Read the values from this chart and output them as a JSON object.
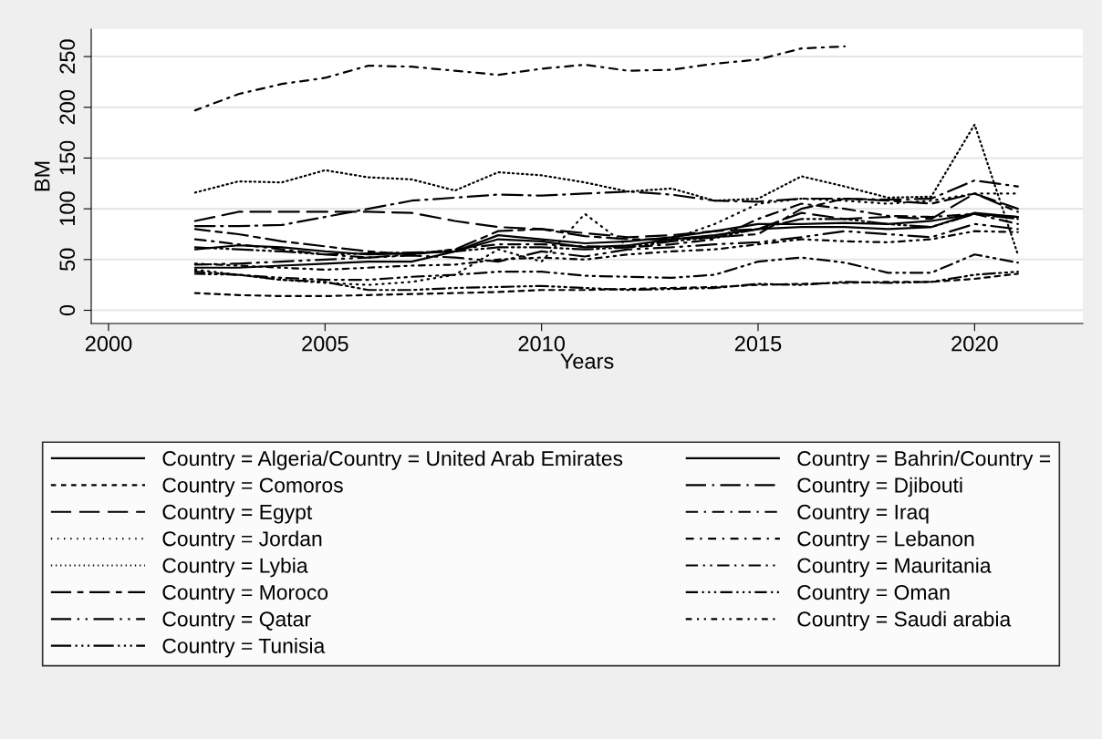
{
  "chart_data": {
    "type": "line",
    "xlabel": "Years",
    "ylabel": "BM",
    "x": [
      2002,
      2003,
      2004,
      2005,
      2006,
      2007,
      2008,
      2009,
      2010,
      2011,
      2012,
      2013,
      2014,
      2015,
      2016,
      2017,
      2018,
      2019,
      2020,
      2021
    ],
    "xlim": [
      1999.6,
      2022.5
    ],
    "xticks": [
      2000,
      2005,
      2010,
      2015,
      2020
    ],
    "ylim": [
      -13,
      277
    ],
    "yticks": [
      0,
      50,
      100,
      150,
      200,
      250
    ],
    "grid": "y",
    "legend": "bottom",
    "series": [
      {
        "name": "Country = Algeria/Country = United Arab Emirates",
        "color": "#000000",
        "line_style": "solid",
        "values": [
          42,
          42,
          44,
          46,
          48,
          48,
          58,
          74,
          70,
          66,
          68,
          72,
          78,
          85,
          85,
          86,
          85,
          88,
          95,
          92
        ]
      },
      {
        "name": "Country = Bahrin/Country =",
        "color": "#000000",
        "line_style": "solid",
        "values": [
          60,
          64,
          62,
          58,
          55,
          56,
          58,
          70,
          68,
          62,
          64,
          70,
          74,
          80,
          82,
          82,
          80,
          82,
          96,
          92
        ]
      },
      {
        "name": "Country = Comoros",
        "color": "#000000",
        "line_style": "shortdash",
        "values": [
          17,
          15,
          14,
          14,
          15,
          16,
          17,
          18,
          20,
          20,
          21,
          22,
          23,
          25,
          26,
          27,
          28,
          28,
          31,
          36
        ]
      },
      {
        "name": "Country = Djibouti",
        "color": "#000000",
        "line_style": "longdashdot",
        "values": [
          83,
          83,
          84,
          92,
          100,
          108,
          111,
          114,
          113,
          115,
          117,
          114,
          108,
          107,
          110,
          110,
          109,
          110,
          128,
          122
        ]
      },
      {
        "name": "Country = Egypt",
        "color": "#000000",
        "line_style": "longdash",
        "values": [
          88,
          97,
          97,
          97,
          97,
          96,
          88,
          82,
          80,
          76,
          72,
          74,
          78,
          80,
          96,
          90,
          92,
          90,
          115,
          100
        ]
      },
      {
        "name": "Country = Iraq",
        "color": "#000000",
        "line_style": "dashdot",
        "values": [
          70,
          65,
          60,
          55,
          52,
          55,
          60,
          65,
          65,
          63,
          62,
          65,
          70,
          90,
          105,
          100,
          93,
          92,
          95,
          85
        ]
      },
      {
        "name": "Country = Jordan",
        "color": "#000000",
        "line_style": "sparsedot",
        "values": [
          40,
          35,
          30,
          27,
          25,
          28,
          35,
          60,
          48,
          95,
          63,
          70,
          85,
          105,
          110,
          108,
          105,
          108,
          115,
          115
        ]
      },
      {
        "name": "Country = Lebanon",
        "color": "#000000",
        "line_style": "shortdashdot",
        "values": [
          197,
          213,
          223,
          229,
          241,
          240,
          236,
          232,
          238,
          242,
          236,
          237,
          243,
          247,
          258,
          260,
          null,
          null,
          null,
          null
        ]
      },
      {
        "name": "Country = Lybia",
        "color": "#000000",
        "line_style": "dotted",
        "values": [
          116,
          127,
          126,
          138,
          131,
          129,
          118,
          136,
          133,
          126,
          117,
          120,
          108,
          110,
          132,
          122,
          111,
          112,
          183,
          55
        ]
      },
      {
        "name": "Country = Mauritania",
        "color": "#000000",
        "line_style": "dashdotdot",
        "values": [
          38,
          35,
          32,
          30,
          30,
          33,
          35,
          38,
          38,
          34,
          33,
          32,
          35,
          48,
          52,
          47,
          37,
          37,
          55,
          47
        ]
      },
      {
        "name": "Country = Moroco",
        "color": "#000000",
        "line_style": "longdashdash",
        "values": [
          80,
          75,
          68,
          63,
          58,
          55,
          60,
          78,
          80,
          73,
          70,
          70,
          72,
          75,
          100,
          110,
          108,
          105,
          115,
          97
        ]
      },
      {
        "name": "Country = Oman",
        "color": "#000000",
        "line_style": "dashdotdotdot",
        "values": [
          36,
          35,
          30,
          28,
          20,
          20,
          22,
          23,
          24,
          22,
          20,
          21,
          22,
          26,
          25,
          28,
          27,
          28,
          35,
          38
        ]
      },
      {
        "name": "Country = Qatar",
        "color": "#000000",
        "line_style": "longdashdotdot",
        "values": [
          45,
          46,
          48,
          50,
          52,
          54,
          52,
          48,
          58,
          53,
          60,
          62,
          65,
          67,
          72,
          78,
          75,
          72,
          85,
          80
        ]
      },
      {
        "name": "Country = Saudi arabia",
        "color": "#000000",
        "line_style": "shortdashdotdot",
        "values": [
          46,
          44,
          42,
          40,
          42,
          44,
          45,
          50,
          52,
          50,
          55,
          58,
          60,
          65,
          70,
          68,
          67,
          70,
          78,
          77
        ]
      },
      {
        "name": "Country = Tunisia",
        "color": "#000000",
        "line_style": "longdashdotdotdot",
        "values": [
          62,
          60,
          58,
          55,
          56,
          57,
          58,
          62,
          62,
          60,
          62,
          68,
          72,
          80,
          90,
          90,
          85,
          82,
          95,
          90
        ]
      }
    ]
  }
}
